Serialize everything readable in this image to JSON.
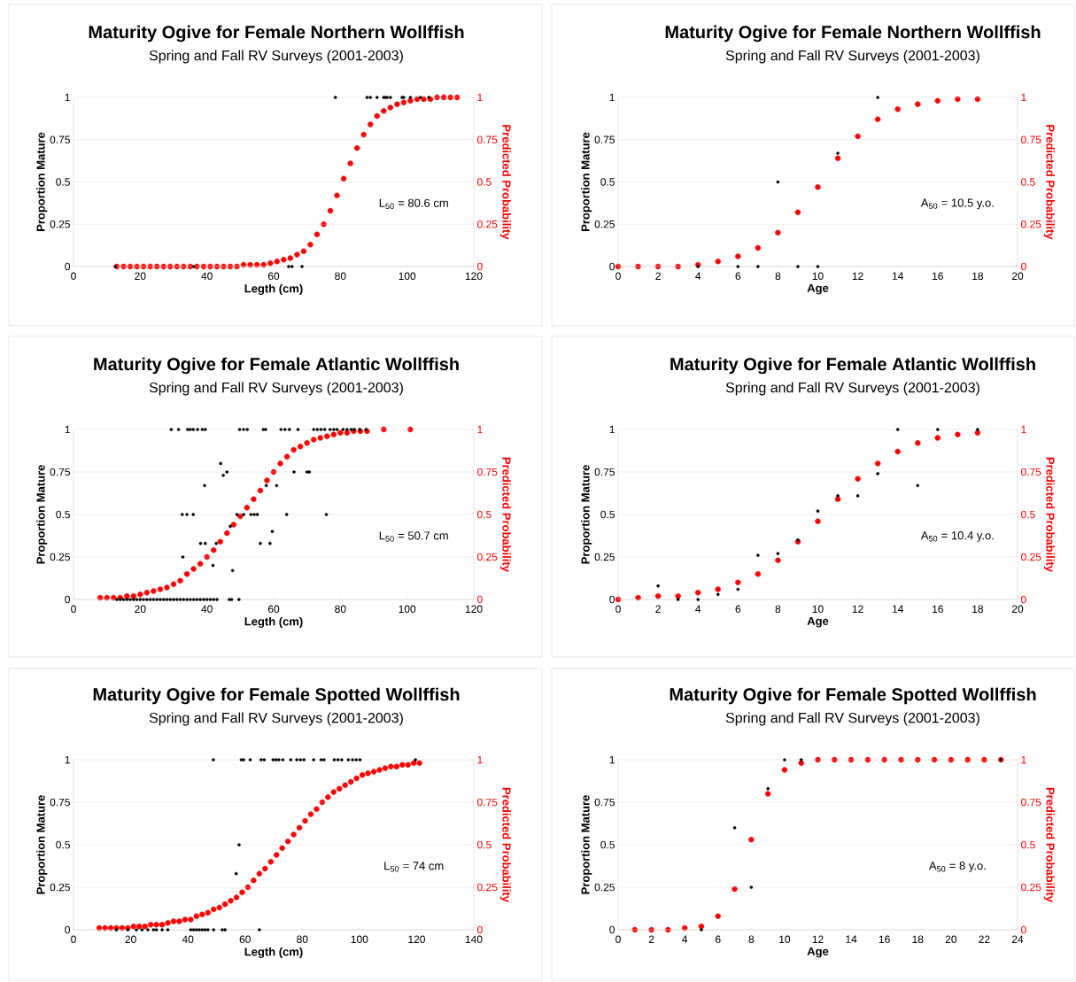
{
  "chart_data": [
    {
      "type": "scatter",
      "title": "Maturity Ogive for Female Northern Wollffish",
      "subtitle": "Spring and Fall RV Surveys (2001-2003)",
      "xlabel": "Legth (cm)",
      "ylabel": "Proportion Mature",
      "y2label": "Predicted Probability",
      "annotations": [
        "L$_{50}$ = 80.6 cm"
      ],
      "xlim": [
        0,
        120
      ],
      "xticks": [
        0,
        20,
        40,
        60,
        80,
        100,
        120
      ],
      "ylim": [
        0,
        1
      ],
      "yticks": [
        0,
        0.25,
        0.5,
        0.75,
        1
      ],
      "y2lim": [
        0,
        1
      ],
      "y2ticks": [
        0,
        0.25,
        0.5,
        0.75,
        1
      ],
      "grid": "y",
      "marker": "circle",
      "series": [
        {
          "color": "#000000",
          "x": [
            12.5,
            36,
            64.5,
            65.5,
            68.5,
            78.5,
            88,
            89,
            91,
            93,
            93.5,
            94,
            95,
            98.5,
            99,
            101,
            104,
            106.5
          ],
          "values": [
            0,
            0,
            0,
            0,
            0,
            1,
            1,
            1,
            1,
            1,
            1,
            1,
            1,
            1,
            1,
            1,
            1,
            1
          ]
        },
        {
          "color": "#ff0000",
          "axis": "y2",
          "x": [
            13,
            15,
            17,
            19,
            21,
            23,
            25,
            27,
            29,
            31,
            33,
            35,
            37,
            39,
            41,
            43,
            45,
            47,
            49,
            51,
            53,
            55,
            57,
            59,
            61,
            63,
            65,
            67,
            69,
            71,
            73,
            75,
            77,
            79,
            81,
            83,
            85,
            87,
            89,
            91,
            93,
            95,
            97,
            99,
            101,
            103,
            105,
            107,
            109,
            111,
            113,
            115
          ],
          "values": [
            0,
            0,
            0,
            0,
            0,
            0,
            0,
            0,
            0,
            0,
            0,
            0,
            0,
            0,
            0,
            0,
            0,
            0,
            0,
            0.01,
            0.01,
            0.01,
            0.01,
            0.02,
            0.03,
            0.04,
            0.05,
            0.07,
            0.09,
            0.13,
            0.19,
            0.25,
            0.33,
            0.42,
            0.52,
            0.61,
            0.7,
            0.78,
            0.84,
            0.89,
            0.92,
            0.94,
            0.96,
            0.97,
            0.98,
            0.99,
            0.99,
            0.99,
            1,
            1,
            1,
            1
          ]
        }
      ]
    },
    {
      "type": "scatter",
      "title": "Maturity Ogive for Female Northern Wollffish",
      "subtitle": "Spring and Fall RV Surveys (2001-2003)",
      "xlabel": "Age",
      "ylabel": "Proportion Mature",
      "y2label": "Predicted Probability",
      "annotations": [
        "A$_{50}$ = 10.5 y.o."
      ],
      "xlim": [
        0,
        20
      ],
      "xticks": [
        0,
        2,
        4,
        6,
        8,
        10,
        12,
        14,
        16,
        18,
        20
      ],
      "ylim": [
        0,
        1
      ],
      "yticks": [
        0,
        0.25,
        0.5,
        0.75,
        1
      ],
      "y2lim": [
        0,
        1
      ],
      "y2ticks": [
        0,
        0.25,
        0.5,
        0.75,
        1
      ],
      "grid": "y",
      "marker": "circle",
      "series": [
        {
          "color": "#000000",
          "x": [
            4,
            6,
            7,
            8,
            9,
            10,
            11,
            13
          ],
          "values": [
            0,
            0,
            0,
            0.5,
            0,
            0,
            0.67,
            1
          ]
        },
        {
          "color": "#ff0000",
          "axis": "y2",
          "x": [
            0,
            1,
            2,
            3,
            4,
            5,
            6,
            7,
            8,
            9,
            10,
            11,
            12,
            13,
            14,
            15,
            16,
            17,
            18
          ],
          "values": [
            0,
            0,
            0,
            0,
            0.01,
            0.03,
            0.06,
            0.11,
            0.2,
            0.32,
            0.47,
            0.64,
            0.77,
            0.87,
            0.93,
            0.96,
            0.98,
            0.99,
            0.99
          ]
        }
      ]
    },
    {
      "type": "scatter",
      "title": "Maturity Ogive for Female Atlantic Wollffish",
      "subtitle": "Spring and Fall RV Surveys (2001-2003)",
      "xlabel": "Legth (cm)",
      "ylabel": "Proportion Mature",
      "y2label": "Predicted Probability",
      "annotations": [
        "L$_{50}$ = 50.7 cm"
      ],
      "xlim": [
        0,
        120
      ],
      "xticks": [
        0,
        20,
        40,
        60,
        80,
        100,
        120
      ],
      "ylim": [
        0,
        1
      ],
      "yticks": [
        0,
        0.25,
        0.5,
        0.75,
        1
      ],
      "y2lim": [
        0,
        1
      ],
      "y2ticks": [
        0,
        0.25,
        0.5,
        0.75,
        1
      ],
      "grid": "y",
      "marker": "circle",
      "series": [
        {
          "color": "#000000",
          "x": [
            13,
            14,
            15,
            16,
            17,
            18,
            19,
            20,
            21,
            22,
            23,
            24,
            25,
            26,
            27,
            28,
            29,
            30,
            31,
            32,
            33,
            34,
            35,
            36,
            37,
            38,
            39,
            40,
            41,
            42,
            43,
            46.7,
            47.4,
            49.6,
            29.3,
            31.5,
            34.2,
            35,
            35.9,
            37.2,
            38.6,
            39.5,
            49.8,
            51,
            52.1,
            56.9,
            57.6,
            62.2,
            63.4,
            64.7,
            67.3,
            72,
            73.1,
            74.2,
            75.3,
            76.9,
            78,
            79,
            80.8,
            82,
            83.2,
            84.2,
            85.8,
            87.7,
            44.1,
            44.9,
            46,
            39.3,
            66.1,
            70,
            70.7,
            57.8,
            60.9,
            32.6,
            34,
            35.9,
            49,
            51,
            53.2,
            54.2,
            55.1,
            63.9,
            75.8,
            59.6,
            38.1,
            39.5,
            42.8,
            56,
            58.9,
            47,
            32.8,
            41.8,
            47.7
          ],
          "values": [
            0,
            0,
            0,
            0,
            0,
            0,
            0,
            0,
            0,
            0,
            0,
            0,
            0,
            0,
            0,
            0,
            0,
            0,
            0,
            0,
            0,
            0,
            0,
            0,
            0,
            0,
            0,
            0,
            0,
            0,
            0,
            0,
            0,
            0,
            1,
            1,
            1,
            1,
            1,
            1,
            1,
            1,
            1,
            1,
            1,
            1,
            1,
            1,
            1,
            1,
            1,
            1,
            1,
            1,
            1,
            1,
            1,
            1,
            1,
            1,
            1,
            1,
            1,
            1,
            0.8,
            0.73,
            0.75,
            0.67,
            0.75,
            0.75,
            0.75,
            0.67,
            0.67,
            0.5,
            0.5,
            0.5,
            0.5,
            0.5,
            0.5,
            0.5,
            0.5,
            0.5,
            0.5,
            0.4,
            0.33,
            0.33,
            0.33,
            0.33,
            0.33,
            0.43,
            0.25,
            0.2,
            0.17
          ]
        },
        {
          "color": "#ff0000",
          "axis": "y2",
          "x": [
            8,
            10,
            12,
            14,
            16,
            18,
            20,
            22,
            24,
            26,
            28,
            30,
            32,
            34,
            36,
            38,
            40,
            42,
            44,
            46,
            48,
            50,
            52,
            54,
            56,
            58,
            60,
            62,
            64,
            66,
            68,
            70,
            72,
            74,
            76,
            78,
            80,
            82,
            84,
            86,
            88,
            93,
            101
          ],
          "values": [
            0.01,
            0.01,
            0.01,
            0.01,
            0.02,
            0.02,
            0.03,
            0.04,
            0.05,
            0.06,
            0.07,
            0.09,
            0.11,
            0.15,
            0.18,
            0.21,
            0.25,
            0.29,
            0.34,
            0.39,
            0.44,
            0.49,
            0.54,
            0.59,
            0.64,
            0.7,
            0.75,
            0.8,
            0.84,
            0.88,
            0.9,
            0.92,
            0.94,
            0.95,
            0.96,
            0.97,
            0.98,
            0.98,
            0.99,
            0.99,
            0.99,
            1,
            1
          ]
        }
      ]
    },
    {
      "type": "scatter",
      "title": "Maturity Ogive for Female Atlantic Wollffish",
      "subtitle": "Spring and Fall RV Surveys (2001-2003)",
      "xlabel": "Age",
      "ylabel": "Proportion Mature",
      "y2label": "Predicted Probability",
      "annotations": [
        "A$_{50}$ = 10.4 y.o."
      ],
      "xlim": [
        0,
        20
      ],
      "xticks": [
        0,
        2,
        4,
        6,
        8,
        10,
        12,
        14,
        16,
        18,
        20
      ],
      "ylim": [
        0,
        1
      ],
      "yticks": [
        0,
        0.25,
        0.5,
        0.75,
        1
      ],
      "y2lim": [
        0,
        1
      ],
      "y2ticks": [
        0,
        0.25,
        0.5,
        0.75,
        1
      ],
      "grid": "y",
      "marker": "circle",
      "series": [
        {
          "color": "#000000",
          "x": [
            2,
            3,
            4,
            5,
            6,
            7,
            8,
            9,
            10,
            11,
            12,
            13,
            14,
            15,
            16,
            18
          ],
          "values": [
            0.08,
            0,
            0,
            0.03,
            0.06,
            0.26,
            0.27,
            0.35,
            0.52,
            0.61,
            0.61,
            0.74,
            1,
            0.67,
            1,
            1
          ]
        },
        {
          "color": "#ff0000",
          "axis": "y2",
          "x": [
            0,
            1,
            2,
            3,
            4,
            5,
            6,
            7,
            8,
            9,
            10,
            11,
            12,
            13,
            14,
            15,
            16,
            17,
            18
          ],
          "values": [
            0,
            0.01,
            0.02,
            0.02,
            0.04,
            0.06,
            0.1,
            0.15,
            0.23,
            0.34,
            0.46,
            0.59,
            0.71,
            0.8,
            0.87,
            0.92,
            0.95,
            0.97,
            0.98
          ]
        }
      ]
    },
    {
      "type": "scatter",
      "title": "Maturity Ogive for Female Spotted Wollffish",
      "subtitle": "Spring and Fall RV Surveys (2001-2003)",
      "xlabel": "Legth (cm)",
      "ylabel": "Proportion Mature",
      "y2label": "Predicted Probability",
      "annotations": [
        "L$_{50}$ = 74 cm"
      ],
      "xlim": [
        0,
        140
      ],
      "xticks": [
        0,
        20,
        40,
        60,
        80,
        100,
        120,
        140
      ],
      "ylim": [
        0,
        1
      ],
      "yticks": [
        0,
        0.25,
        0.5,
        0.75,
        1
      ],
      "y2lim": [
        0,
        1
      ],
      "y2ticks": [
        0,
        0.25,
        0.5,
        0.75,
        1
      ],
      "grid": "y",
      "marker": "circle",
      "series": [
        {
          "color": "#000000",
          "x": [
            15,
            19,
            22,
            24,
            26,
            28,
            29,
            31,
            33,
            41,
            42,
            43,
            44,
            45,
            46,
            47,
            49,
            52,
            53,
            65,
            48.9,
            58.7,
            59.5,
            61.8,
            65.6,
            66.7,
            69.8,
            70.8,
            71.8,
            73.2,
            76,
            78.1,
            79.4,
            80.6,
            84,
            86.6,
            87.6,
            91.2,
            92.5,
            93.8,
            96.1,
            97.6,
            98.9,
            100.2,
            119.6,
            57.9,
            56.9
          ],
          "values": [
            0,
            0,
            0,
            0,
            0,
            0,
            0,
            0,
            0,
            0,
            0,
            0,
            0,
            0,
            0,
            0,
            0,
            0,
            0,
            0,
            1,
            1,
            1,
            1,
            1,
            1,
            1,
            1,
            1,
            1,
            1,
            1,
            1,
            1,
            1,
            1,
            1,
            1,
            1,
            1,
            1,
            1,
            1,
            1,
            1,
            0.5,
            0.33
          ]
        },
        {
          "color": "#ff0000",
          "axis": "y2",
          "x": [
            9,
            11,
            13,
            15,
            17,
            19,
            21,
            23,
            25,
            27,
            29,
            31,
            33,
            35,
            37,
            39,
            41,
            43,
            45,
            47,
            49,
            51,
            53,
            55,
            57,
            59,
            61,
            63,
            65,
            67,
            69,
            71,
            73,
            75,
            77,
            79,
            81,
            83,
            85,
            87,
            89,
            91,
            93,
            95,
            97,
            99,
            101,
            103,
            105,
            107,
            109,
            111,
            113,
            115,
            117,
            119,
            121
          ],
          "values": [
            0.01,
            0.01,
            0.01,
            0.01,
            0.01,
            0.01,
            0.02,
            0.02,
            0.02,
            0.03,
            0.03,
            0.03,
            0.04,
            0.05,
            0.05,
            0.06,
            0.06,
            0.08,
            0.09,
            0.1,
            0.12,
            0.13,
            0.15,
            0.17,
            0.19,
            0.22,
            0.25,
            0.29,
            0.33,
            0.36,
            0.4,
            0.44,
            0.48,
            0.52,
            0.56,
            0.6,
            0.64,
            0.68,
            0.71,
            0.75,
            0.78,
            0.81,
            0.83,
            0.85,
            0.87,
            0.89,
            0.91,
            0.92,
            0.93,
            0.94,
            0.95,
            0.96,
            0.96,
            0.97,
            0.97,
            0.98,
            0.98
          ]
        }
      ]
    },
    {
      "type": "scatter",
      "title": "Maturity Ogive for Female Spotted Wollffish",
      "subtitle": "Spring and Fall RV Surveys (2001-2003)",
      "xlabel": "Age",
      "ylabel": "Proportion Mature",
      "y2label": "Predicted Probability",
      "annotations": [
        "A$_{50}$ = 8 y.o."
      ],
      "xlim": [
        0,
        24
      ],
      "xticks": [
        0,
        2,
        4,
        6,
        8,
        10,
        12,
        14,
        16,
        18,
        20,
        22,
        24
      ],
      "ylim": [
        0,
        1
      ],
      "yticks": [
        0,
        0.25,
        0.5,
        0.75,
        1
      ],
      "y2lim": [
        0,
        1
      ],
      "y2ticks": [
        0,
        0.25,
        0.5,
        0.75,
        1
      ],
      "grid": "y",
      "marker": "circle",
      "series": [
        {
          "color": "#000000",
          "x": [
            5,
            7,
            8,
            9,
            10,
            11,
            23
          ],
          "values": [
            0,
            0.6,
            0.25,
            0.83,
            1,
            1,
            1
          ]
        },
        {
          "color": "#ff0000",
          "axis": "y2",
          "x": [
            1,
            2,
            3,
            4,
            5,
            6,
            7,
            8,
            9,
            10,
            11,
            12,
            13,
            14,
            15,
            16,
            17,
            18,
            19,
            20,
            21,
            22,
            23
          ],
          "values": [
            0,
            0,
            0,
            0.01,
            0.02,
            0.08,
            0.24,
            0.53,
            0.8,
            0.94,
            0.98,
            1,
            1,
            1,
            1,
            1,
            1,
            1,
            1,
            1,
            1,
            1,
            1
          ]
        }
      ]
    }
  ]
}
